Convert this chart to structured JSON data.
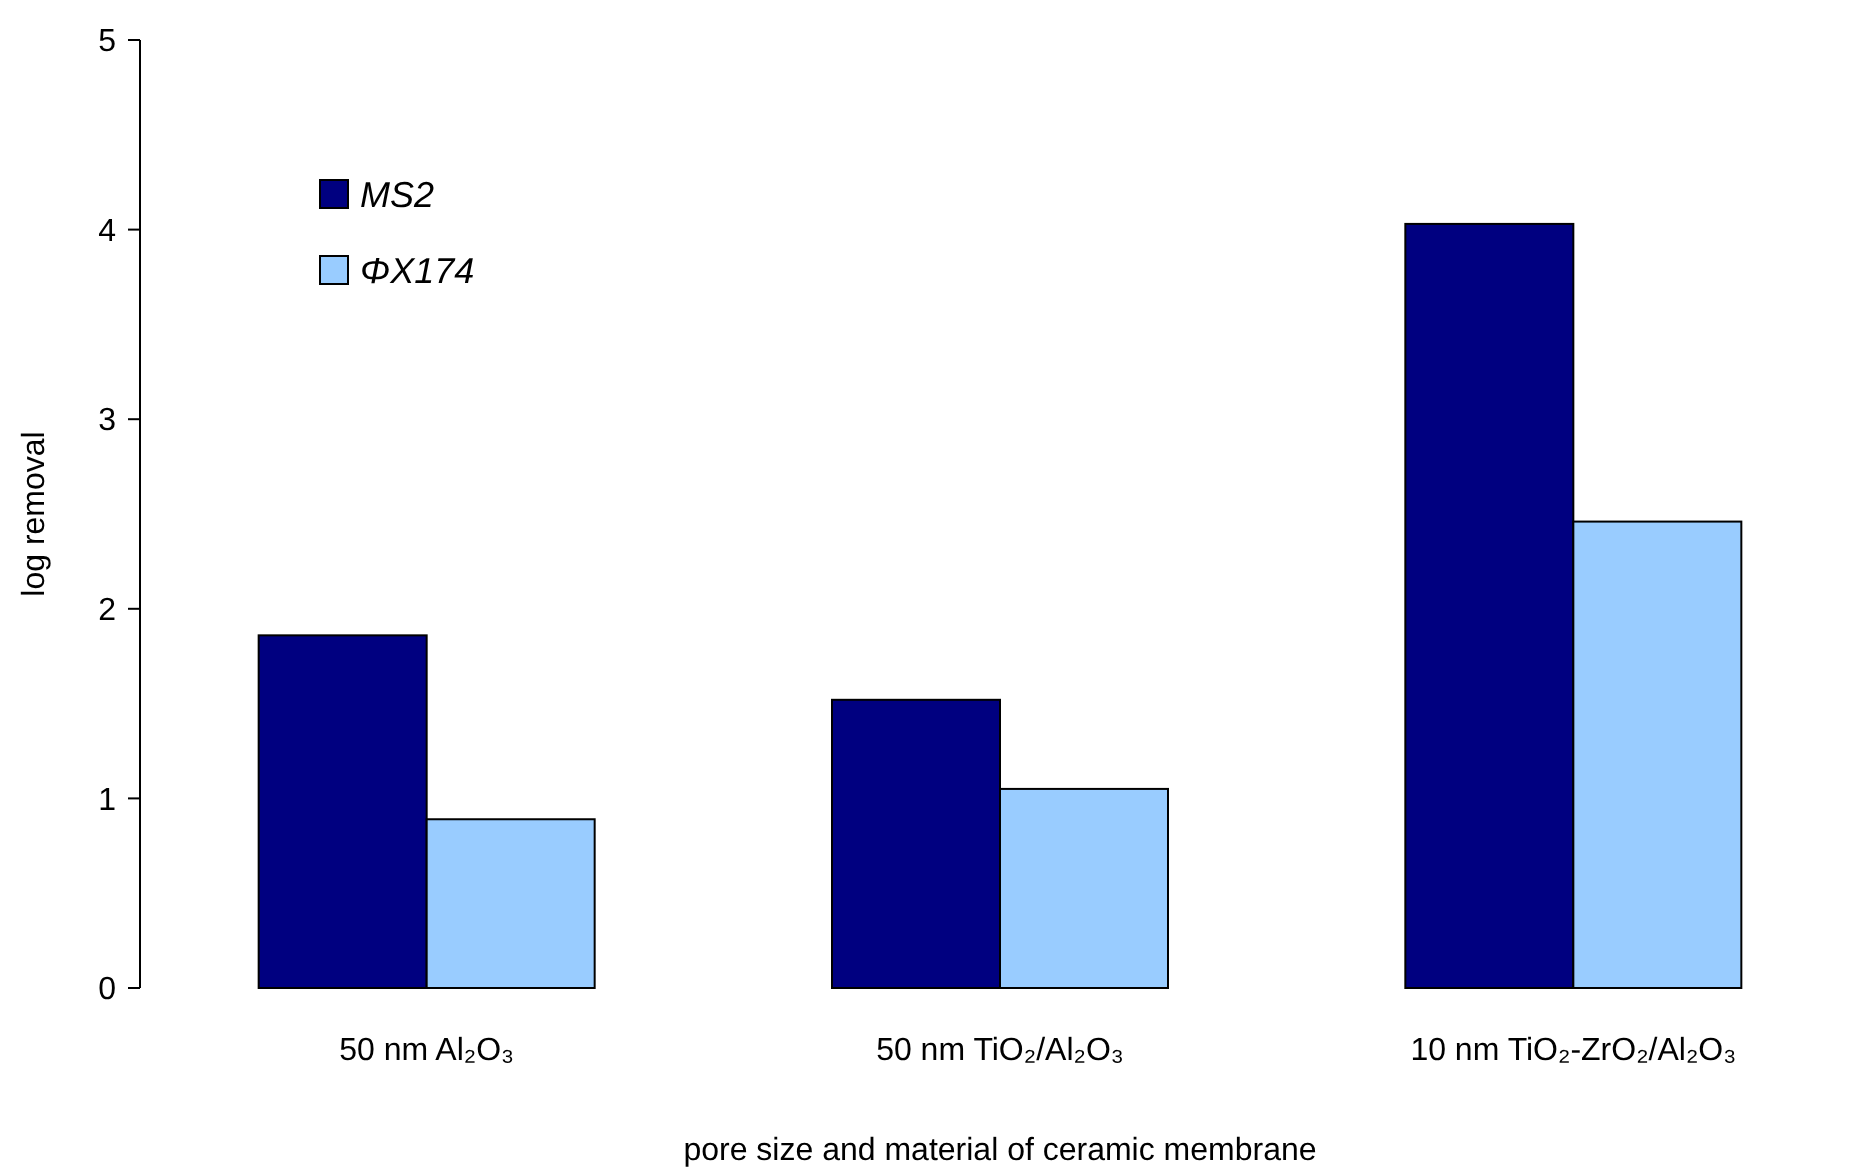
{
  "chart_data": {
    "type": "bar",
    "xlabel": "pore size and material of ceramic membrane",
    "ylabel": "log removal",
    "categories": [
      "50 nm Al₂O₃",
      "50 nm TiO₂/Al₂O₃",
      "10 nm TiO₂-ZrO₂/Al₂O₃"
    ],
    "series": [
      {
        "name": "MS2",
        "color": "#000080",
        "values": [
          1.86,
          1.52,
          4.03
        ]
      },
      {
        "name": "ΦX174",
        "color": "#99ccff",
        "values": [
          0.89,
          1.05,
          2.46
        ]
      }
    ],
    "ylim": [
      0,
      5
    ],
    "yticks": [
      0,
      1,
      2,
      3,
      4,
      5
    ],
    "grid": false,
    "legend": "top left"
  }
}
